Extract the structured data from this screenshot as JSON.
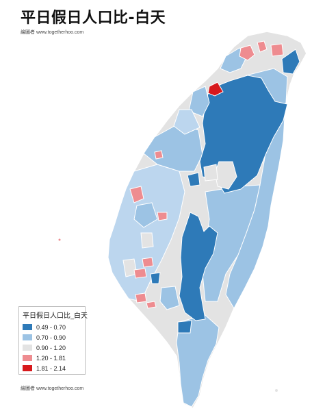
{
  "title": "平日假日人口比-白天",
  "credit_top": "繪圖者 www.togetherhoo.com",
  "credit_bottom": "繪圖者 www.togetherhoo.com",
  "colors": {
    "dark_blue": "#2e7ab8",
    "mid_blue": "#9cc3e4",
    "light_blue": "#bcd6ee",
    "gray": "#e3e3e3",
    "pink": "#ee8c90",
    "red": "#d7191c",
    "boundary": "#ffffff"
  },
  "legend": {
    "title": "平日假日人口比_白天",
    "items": [
      {
        "label": "0.49 - 0.70",
        "color": "#2e7ab8"
      },
      {
        "label": "0.70 - 0.90",
        "color": "#9cc3e4"
      },
      {
        "label": "0.90 - 1.20",
        "color": "#e3e3e3"
      },
      {
        "label": "1.20 - 1.81",
        "color": "#ee8c90"
      },
      {
        "label": "1.81 - 2.14",
        "color": "#d7191c"
      }
    ]
  }
}
